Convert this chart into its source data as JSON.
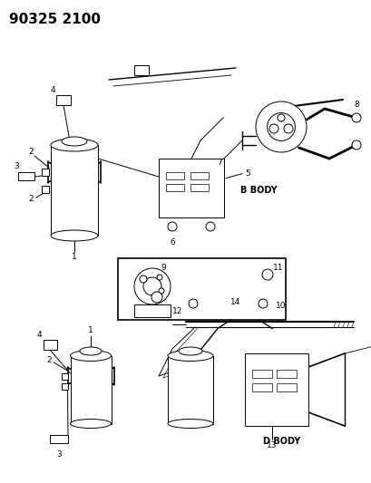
{
  "title": "90325 2100",
  "bg_color": "#ffffff",
  "line_color": "#000000",
  "b_body_label": "B BODY",
  "d_body_label": "D BODY",
  "figsize": [
    4.09,
    5.33
  ],
  "dpi": 100,
  "title_fontsize": 11,
  "part_num_fontsize": 6.5,
  "label_fontsize": 7
}
